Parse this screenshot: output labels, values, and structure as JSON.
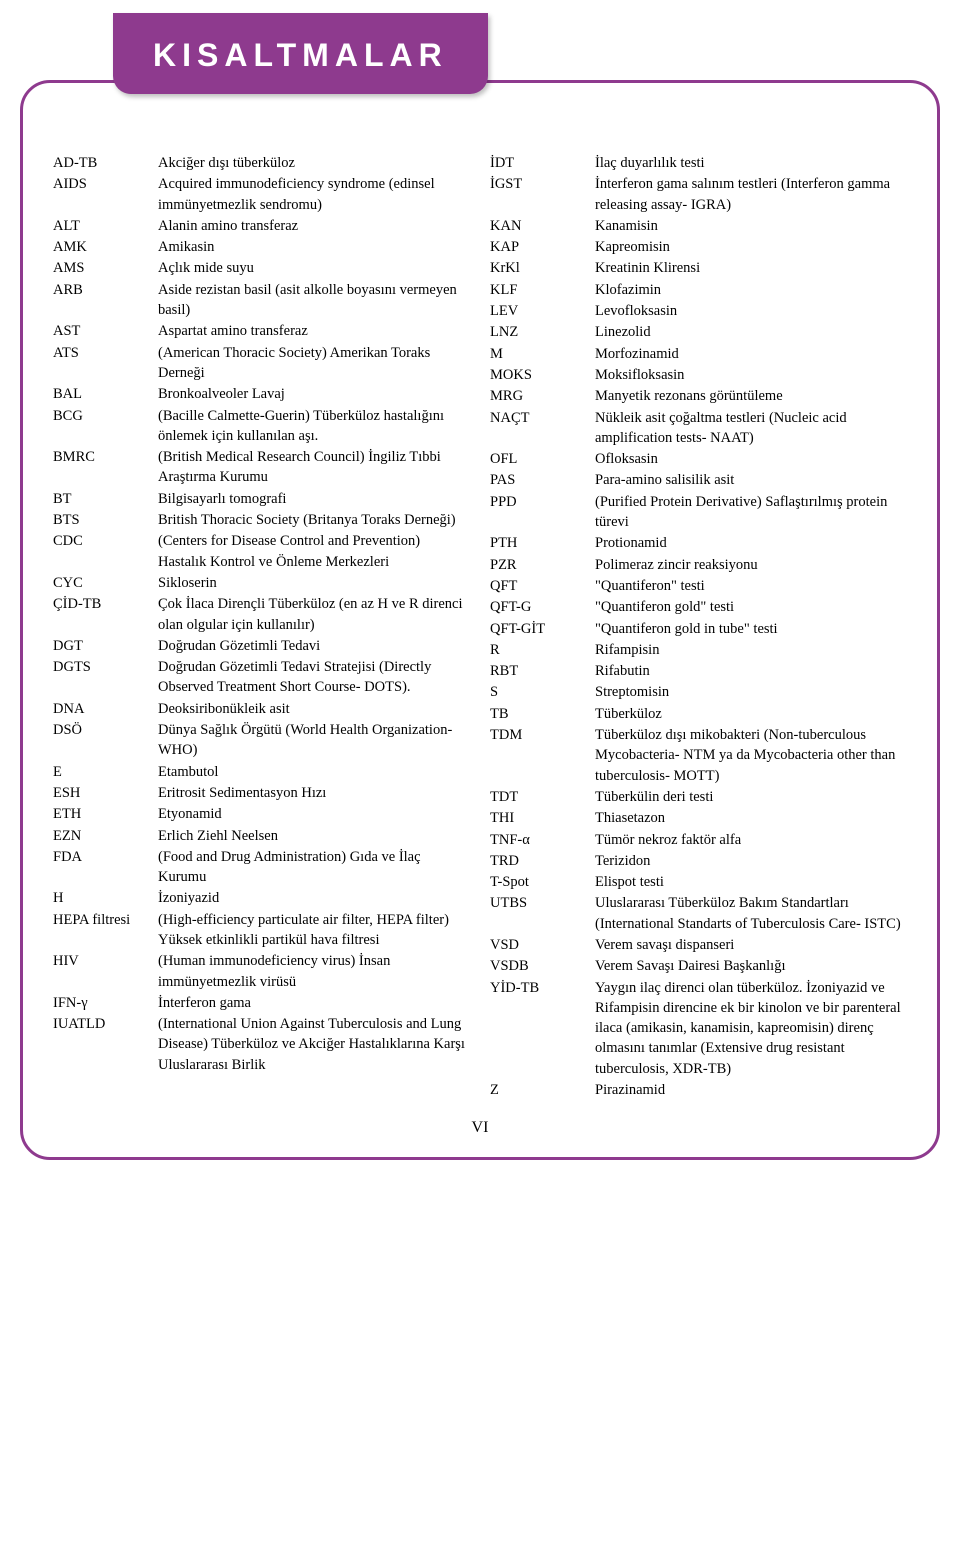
{
  "title": "KISALTMALAR",
  "page_number": "VI",
  "colors": {
    "accent": "#8e3a8e",
    "title_text": "#ffffff",
    "body_text": "#000000",
    "background": "#ffffff"
  },
  "typography": {
    "title_fontsize": 32,
    "title_letterspacing": 6,
    "body_fontsize": 14.5,
    "line_height": 1.4
  },
  "left_column": [
    {
      "abbr": "AD-TB",
      "defn": "Akciğer dışı tüberküloz"
    },
    {
      "abbr": "AIDS",
      "defn": "Acquired immunodeficiency syndrome (edinsel immünyetmezlik sendromu)"
    },
    {
      "abbr": "ALT",
      "defn": "Alanin amino transferaz"
    },
    {
      "abbr": "AMK",
      "defn": "Amikasin"
    },
    {
      "abbr": "AMS",
      "defn": "Açlık mide suyu"
    },
    {
      "abbr": "ARB",
      "defn": "Aside rezistan basil (asit alkolle boyasını vermeyen basil)"
    },
    {
      "abbr": "AST",
      "defn": "Aspartat amino transferaz"
    },
    {
      "abbr": "ATS",
      "defn": "(American Thoracic Society) Amerikan Toraks Derneği"
    },
    {
      "abbr": "BAL",
      "defn": "Bronkoalveoler Lavaj"
    },
    {
      "abbr": "BCG",
      "defn": "(Bacille Calmette-Guerin) Tüberküloz hastalığını önlemek için kullanılan aşı."
    },
    {
      "abbr": "BMRC",
      "defn": "(British Medical Research Council) İngiliz Tıbbi Araştırma Kurumu"
    },
    {
      "abbr": "BT",
      "defn": "Bilgisayarlı tomografi"
    },
    {
      "abbr": "BTS",
      "defn": "British Thoracic Society (Britanya Toraks Derneği)"
    },
    {
      "abbr": "CDC",
      "defn": "(Centers for Disease Control and Prevention) Hastalık Kontrol ve Önleme Merkezleri"
    },
    {
      "abbr": "CYC",
      "defn": "Sikloserin"
    },
    {
      "abbr": "ÇİD-TB",
      "defn": "Çok İlaca Dirençli Tüberküloz (en az H ve R direnci olan olgular için kullanılır)"
    },
    {
      "abbr": "DGT",
      "defn": "Doğrudan Gözetimli Tedavi"
    },
    {
      "abbr": "DGTS",
      "defn": "Doğrudan Gözetimli Tedavi Stratejisi (Directly Observed Treatment Short Course- DOTS)."
    },
    {
      "abbr": "DNA",
      "defn": "Deoksiribonükleik asit"
    },
    {
      "abbr": "DSÖ",
      "defn": "Dünya Sağlık Örgütü (World Health Organization- WHO)"
    },
    {
      "abbr": "E",
      "defn": "Etambutol"
    },
    {
      "abbr": "ESH",
      "defn": "Eritrosit Sedimentasyon Hızı"
    },
    {
      "abbr": "ETH",
      "defn": "Etyonamid"
    },
    {
      "abbr": "EZN",
      "defn": "Erlich Ziehl Neelsen"
    },
    {
      "abbr": "FDA",
      "defn": "(Food and Drug Administration) Gıda ve İlaç Kurumu"
    },
    {
      "abbr": "H",
      "defn": "İzoniyazid"
    },
    {
      "abbr": "HEPA filtresi",
      "defn": "(High-efficiency particulate air filter, HEPA filter) Yüksek etkinlikli partikül hava filtresi"
    },
    {
      "abbr": "HIV",
      "defn": "(Human immunodeficiency virus) İnsan immünyetmezlik virüsü"
    },
    {
      "abbr": "IFN-γ",
      "defn": "İnterferon gama"
    },
    {
      "abbr": "IUATLD",
      "defn": "(International Union Against Tuberculosis and Lung Disease) Tüberküloz ve Akciğer Hastalıklarına Karşı Uluslararası Birlik"
    }
  ],
  "right_column": [
    {
      "abbr": "İDT",
      "defn": "İlaç duyarlılık testi"
    },
    {
      "abbr": "İGST",
      "defn": "İnterferon gama salınım testleri (Interferon gamma releasing assay- IGRA)"
    },
    {
      "abbr": "KAN",
      "defn": "Kanamisin"
    },
    {
      "abbr": "KAP",
      "defn": "Kapreomisin"
    },
    {
      "abbr": "KrKl",
      "defn": "Kreatinin Klirensi"
    },
    {
      "abbr": "KLF",
      "defn": "Klofazimin"
    },
    {
      "abbr": "LEV",
      "defn": "Levofloksasin"
    },
    {
      "abbr": "LNZ",
      "defn": "Linezolid"
    },
    {
      "abbr": "M",
      "defn": "Morfozinamid"
    },
    {
      "abbr": "MOKS",
      "defn": "Moksifloksasin"
    },
    {
      "abbr": "MRG",
      "defn": "Manyetik rezonans görüntüleme"
    },
    {
      "abbr": "NAÇT",
      "defn": "Nükleik asit çoğaltma testleri (Nucleic acid amplification tests- NAAT)"
    },
    {
      "abbr": "OFL",
      "defn": "Ofloksasin"
    },
    {
      "abbr": "PAS",
      "defn": "Para-amino salisilik asit"
    },
    {
      "abbr": "PPD",
      "defn": "(Purified Protein Derivative) Saflaştırılmış protein türevi"
    },
    {
      "abbr": "PTH",
      "defn": "Protionamid"
    },
    {
      "abbr": "PZR",
      "defn": "Polimeraz zincir reaksiyonu"
    },
    {
      "abbr": "QFT",
      "defn": "\"Quantiferon\" testi"
    },
    {
      "abbr": "QFT-G",
      "defn": "\"Quantiferon gold\" testi"
    },
    {
      "abbr": "QFT-GİT",
      "defn": "\"Quantiferon gold in tube\" testi"
    },
    {
      "abbr": "R",
      "defn": "Rifampisin"
    },
    {
      "abbr": "RBT",
      "defn": "Rifabutin"
    },
    {
      "abbr": "S",
      "defn": "Streptomisin"
    },
    {
      "abbr": "TB",
      "defn": "Tüberküloz"
    },
    {
      "abbr": "TDM",
      "defn": "Tüberküloz dışı mikobakteri (Non-tuberculous Mycobacteria- NTM ya da Mycobacteria other than tuberculosis- MOTT)"
    },
    {
      "abbr": "TDT",
      "defn": "Tüberkülin deri testi"
    },
    {
      "abbr": "THI",
      "defn": "Thiasetazon"
    },
    {
      "abbr": "TNF-α",
      "defn": "Tümör nekroz faktör alfa"
    },
    {
      "abbr": "TRD",
      "defn": "Terizidon"
    },
    {
      "abbr": "T-Spot",
      "defn": "Elispot testi"
    },
    {
      "abbr": "UTBS",
      "defn": "Uluslararası Tüberküloz Bakım Standartları (International Standarts of Tuberculosis Care- ISTC)"
    },
    {
      "abbr": "VSD",
      "defn": "Verem savaşı dispanseri"
    },
    {
      "abbr": "VSDB",
      "defn": "Verem Savaşı Dairesi Başkanlığı"
    },
    {
      "abbr": "YİD-TB",
      "defn": "Yaygın ilaç direnci olan tüberküloz. İzoniyazid ve Rifampisin direncine ek bir kinolon ve bir parenteral ilaca (amikasin, kanamisin, kapreomisin) direnç olmasını tanımlar (Extensive drug resistant tuberculosis, XDR-TB)"
    },
    {
      "abbr": "Z",
      "defn": "Pirazinamid"
    }
  ]
}
